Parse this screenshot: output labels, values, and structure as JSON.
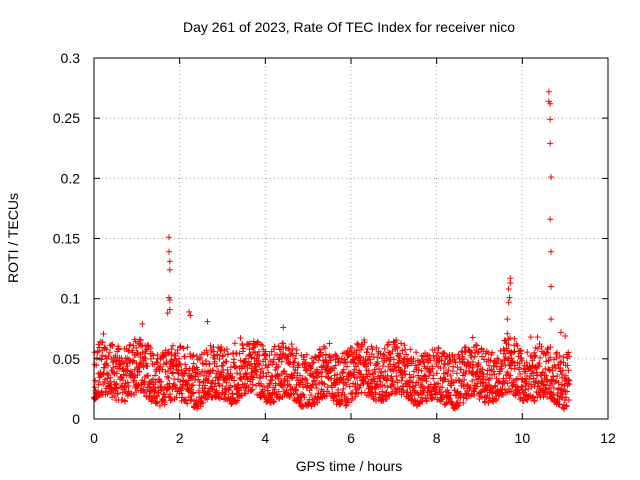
{
  "chart_data": {
    "type": "scatter",
    "title": "Day 261 of 2023, Rate Of TEC Index for receiver nico",
    "xlabel": "GPS time / hours",
    "ylabel": "ROTI / TECUs",
    "xlim": [
      0,
      12
    ],
    "ylim": [
      0,
      0.3
    ],
    "x_ticks": [
      0,
      2,
      4,
      6,
      8,
      10,
      12
    ],
    "y_ticks": [
      0,
      0.05,
      0.1,
      0.15,
      0.2,
      0.25,
      0.3
    ],
    "x_tick_labels": [
      "0",
      "2",
      "4",
      "6",
      "8",
      "10",
      "12"
    ],
    "y_tick_labels": [
      "0",
      "0.05",
      "0.1",
      "0.15",
      "0.2",
      "0.25",
      "0.3"
    ],
    "grid": true,
    "marker": "+",
    "series_color": "#ff0000",
    "data_range_hours": [
      0,
      11.1
    ],
    "baseline_band": [
      0.015,
      0.06
    ],
    "notable_points": [
      {
        "x": 1.75,
        "y": 0.151
      },
      {
        "x": 1.75,
        "y": 0.139
      },
      {
        "x": 1.77,
        "y": 0.131
      },
      {
        "x": 1.77,
        "y": 0.124
      },
      {
        "x": 1.75,
        "y": 0.101
      },
      {
        "x": 1.77,
        "y": 0.099
      },
      {
        "x": 1.77,
        "y": 0.091
      },
      {
        "x": 1.72,
        "y": 0.088
      },
      {
        "x": 2.22,
        "y": 0.089
      },
      {
        "x": 2.25,
        "y": 0.086
      },
      {
        "x": 2.65,
        "y": 0.081
      },
      {
        "x": 1.13,
        "y": 0.079
      },
      {
        "x": 4.42,
        "y": 0.076
      },
      {
        "x": 9.72,
        "y": 0.117
      },
      {
        "x": 9.72,
        "y": 0.113
      },
      {
        "x": 9.68,
        "y": 0.108
      },
      {
        "x": 9.7,
        "y": 0.101
      },
      {
        "x": 9.68,
        "y": 0.097
      },
      {
        "x": 9.65,
        "y": 0.083
      },
      {
        "x": 9.65,
        "y": 0.071
      },
      {
        "x": 10.62,
        "y": 0.272
      },
      {
        "x": 10.62,
        "y": 0.264
      },
      {
        "x": 10.65,
        "y": 0.262
      },
      {
        "x": 10.65,
        "y": 0.249
      },
      {
        "x": 10.65,
        "y": 0.229
      },
      {
        "x": 10.67,
        "y": 0.201
      },
      {
        "x": 10.65,
        "y": 0.166
      },
      {
        "x": 10.67,
        "y": 0.139
      },
      {
        "x": 10.67,
        "y": 0.11
      },
      {
        "x": 10.67,
        "y": 0.083
      },
      {
        "x": 10.9,
        "y": 0.072
      },
      {
        "x": 11.0,
        "y": 0.069
      }
    ]
  }
}
